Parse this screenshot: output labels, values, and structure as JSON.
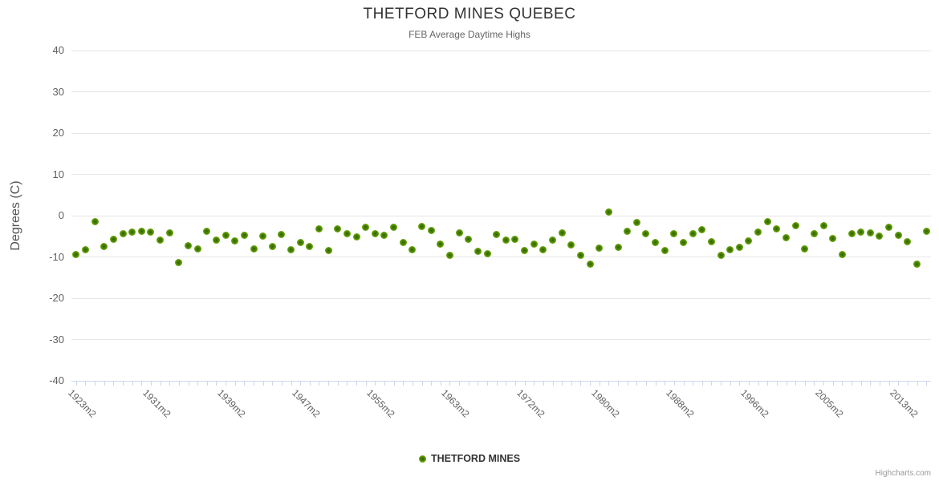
{
  "header": {
    "title": "THETFORD MINES QUEBEC",
    "subtitle": "FEB Average Daytime Highs"
  },
  "legend": {
    "label": "THETFORD MINES"
  },
  "credits": {
    "label": "Highcharts.com"
  },
  "chart_data": {
    "type": "scatter",
    "title": "THETFORD MINES QUEBEC",
    "subtitle": "FEB Average Daytime Highs",
    "xlabel": "",
    "ylabel": "Degrees (C)",
    "ylim": [
      -40,
      40
    ],
    "ytick_step": 10,
    "grid": true,
    "legend_position": "bottom-center",
    "x_label_rotation": 45,
    "x_tick_interval": 8,
    "visible_x_tick_labels": [
      "1923m2",
      "1931m2",
      "1939m2",
      "1947m2",
      "1955m2",
      "1963m2",
      "1972m2",
      "1980m2",
      "1988m2",
      "1996m2",
      "2005m2",
      "2013m2"
    ],
    "categories": [
      "1923m2",
      "1924m2",
      "1925m2",
      "1926m2",
      "1927m2",
      "1928m2",
      "1929m2",
      "1930m2",
      "1931m2",
      "1932m2",
      "1933m2",
      "1934m2",
      "1935m2",
      "1936m2",
      "1937m2",
      "1938m2",
      "1939m2",
      "1940m2",
      "1941m2",
      "1942m2",
      "1943m2",
      "1944m2",
      "1945m2",
      "1946m2",
      "1947m2",
      "1948m2",
      "1949m2",
      "1950m2",
      "1951m2",
      "1952m2",
      "1953m2",
      "1954m2",
      "1955m2",
      "1956m2",
      "1957m2",
      "1958m2",
      "1959m2",
      "1960m2",
      "1961m2",
      "1962m2",
      "1963m2",
      "1964m2",
      "1965m2",
      "1966m2",
      "1967m2",
      "1968m2",
      "1969m2",
      "1970m2",
      "1972m2",
      "1973m2",
      "1974m2",
      "1975m2",
      "1976m2",
      "1977m2",
      "1978m2",
      "1979m2",
      "1980m2",
      "1981m2",
      "1982m2",
      "1983m2",
      "1984m2",
      "1985m2",
      "1986m2",
      "1987m2",
      "1988m2",
      "1989m2",
      "1990m2",
      "1991m2",
      "1992m2",
      "1993m2",
      "1994m2",
      "1995m2",
      "1996m2",
      "1997m2",
      "1998m2",
      "1999m2",
      "2000m2",
      "2001m2",
      "2002m2",
      "2003m2",
      "2005m2",
      "2006m2",
      "2007m2",
      "2008m2",
      "2009m2",
      "2010m2",
      "2011m2",
      "2012m2",
      "2013m2",
      "2014m2",
      "2015m2",
      "2016m2"
    ],
    "series": [
      {
        "name": "THETFORD MINES",
        "values": [
          -9.5,
          -8.2,
          -1.5,
          -7.4,
          -5.7,
          -4.4,
          -4.0,
          -3.8,
          -4.0,
          -6.0,
          -4.2,
          -11.3,
          -7.3,
          -8.1,
          -3.7,
          -6.0,
          -4.8,
          -6.2,
          -4.7,
          -8.1,
          -4.9,
          -7.4,
          -4.6,
          -8.3,
          -6.6,
          -7.4,
          -3.3,
          -8.4,
          -3.3,
          -4.3,
          -5.1,
          -2.9,
          -4.4,
          -4.7,
          -2.9,
          -6.6,
          -8.2,
          -2.6,
          -3.6,
          -6.8,
          -9.6,
          -4.1,
          -5.8,
          -8.7,
          -9.2,
          -4.5,
          -6.0,
          -5.8,
          -8.4,
          -6.9,
          -8.2,
          -5.9,
          -4.1,
          -7.0,
          -9.7,
          -11.8,
          -7.8,
          0.8,
          -7.7,
          -3.7,
          -1.6,
          -4.4,
          -6.6,
          -8.4,
          -4.4,
          -6.5,
          -4.4,
          -3.4,
          -6.4,
          -9.7,
          -8.2,
          -7.6,
          -6.2,
          -4.0,
          -1.4,
          -3.3,
          -5.3,
          -2.5,
          -8.0,
          -4.3,
          -2.5,
          -5.6,
          -9.4,
          -4.4,
          -4.0,
          -4.2,
          -5.0,
          -2.9,
          -4.7,
          -6.3,
          -11.8,
          -3.8
        ]
      }
    ],
    "colors": {
      "marker_outer": "#7cb71e",
      "marker_inner": "#2f5f00",
      "grid": "#e6e6e6",
      "axis_line": "#ccd6eb",
      "title_text": "#333333",
      "subtitle_text": "#666666",
      "axis_label_text": "#606060",
      "credits_text": "#999999"
    }
  }
}
